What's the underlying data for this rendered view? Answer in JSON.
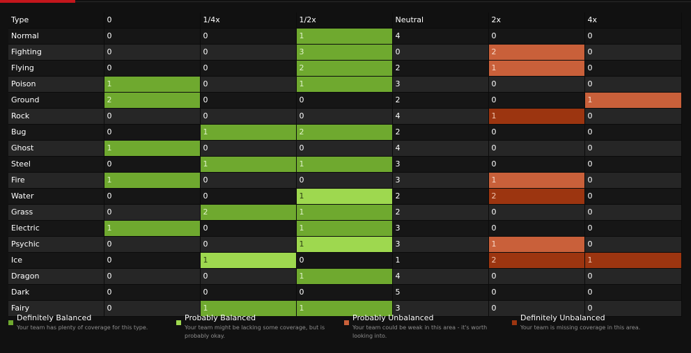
{
  "colors": {
    "background": "#111111",
    "accent": "#c4161c",
    "definitely_balanced": "#6fa92f",
    "probably_balanced": "#9ed84f",
    "probably_unbalanced": "#c9603a",
    "definitely_unbalanced": "#9c3510"
  },
  "table": {
    "headers": [
      "Type",
      "0",
      "1/4x",
      "1/2x",
      "Neutral",
      "2x",
      "4x"
    ],
    "rows": [
      {
        "type": "Normal",
        "values": [
          "0",
          "0",
          "1",
          "4",
          "0",
          "0"
        ],
        "status": [
          "",
          "",
          "db",
          "",
          "",
          ""
        ]
      },
      {
        "type": "Fighting",
        "values": [
          "0",
          "0",
          "3",
          "0",
          "2",
          "0"
        ],
        "status": [
          "",
          "",
          "db",
          "",
          "pu",
          ""
        ]
      },
      {
        "type": "Flying",
        "values": [
          "0",
          "0",
          "2",
          "2",
          "1",
          "0"
        ],
        "status": [
          "",
          "",
          "db",
          "",
          "pu",
          ""
        ]
      },
      {
        "type": "Poison",
        "values": [
          "1",
          "0",
          "1",
          "3",
          "0",
          "0"
        ],
        "status": [
          "db",
          "",
          "db",
          "",
          "",
          ""
        ]
      },
      {
        "type": "Ground",
        "values": [
          "2",
          "0",
          "0",
          "2",
          "0",
          "1"
        ],
        "status": [
          "db",
          "",
          "",
          "",
          "",
          "pu"
        ]
      },
      {
        "type": "Rock",
        "values": [
          "0",
          "0",
          "0",
          "4",
          "1",
          "0"
        ],
        "status": [
          "",
          "",
          "",
          "",
          "du",
          ""
        ]
      },
      {
        "type": "Bug",
        "values": [
          "0",
          "1",
          "2",
          "2",
          "0",
          "0"
        ],
        "status": [
          "",
          "db",
          "db",
          "",
          "",
          ""
        ]
      },
      {
        "type": "Ghost",
        "values": [
          "1",
          "0",
          "0",
          "4",
          "0",
          "0"
        ],
        "status": [
          "db",
          "",
          "",
          "",
          "",
          ""
        ]
      },
      {
        "type": "Steel",
        "values": [
          "0",
          "1",
          "1",
          "3",
          "0",
          "0"
        ],
        "status": [
          "",
          "db",
          "db",
          "",
          "",
          ""
        ]
      },
      {
        "type": "Fire",
        "values": [
          "1",
          "0",
          "0",
          "3",
          "1",
          "0"
        ],
        "status": [
          "db",
          "",
          "",
          "",
          "pu",
          ""
        ]
      },
      {
        "type": "Water",
        "values": [
          "0",
          "0",
          "1",
          "2",
          "2",
          "0"
        ],
        "status": [
          "",
          "",
          "pb",
          "",
          "du",
          ""
        ]
      },
      {
        "type": "Grass",
        "values": [
          "0",
          "2",
          "1",
          "2",
          "0",
          "0"
        ],
        "status": [
          "",
          "db",
          "db",
          "",
          "",
          ""
        ]
      },
      {
        "type": "Electric",
        "values": [
          "1",
          "0",
          "1",
          "3",
          "0",
          "0"
        ],
        "status": [
          "db",
          "",
          "db",
          "",
          "",
          ""
        ]
      },
      {
        "type": "Psychic",
        "values": [
          "0",
          "0",
          "1",
          "3",
          "1",
          "0"
        ],
        "status": [
          "",
          "",
          "pb",
          "",
          "pu",
          ""
        ]
      },
      {
        "type": "Ice",
        "values": [
          "0",
          "1",
          "0",
          "1",
          "2",
          "1"
        ],
        "status": [
          "",
          "pb",
          "",
          "",
          "du",
          "du"
        ]
      },
      {
        "type": "Dragon",
        "values": [
          "0",
          "0",
          "1",
          "4",
          "0",
          "0"
        ],
        "status": [
          "",
          "",
          "db",
          "",
          "",
          ""
        ]
      },
      {
        "type": "Dark",
        "values": [
          "0",
          "0",
          "0",
          "5",
          "0",
          "0"
        ],
        "status": [
          "",
          "",
          "",
          "",
          "",
          ""
        ]
      },
      {
        "type": "Fairy",
        "values": [
          "0",
          "1",
          "1",
          "3",
          "0",
          "0"
        ],
        "status": [
          "",
          "db",
          "db",
          "",
          "",
          ""
        ]
      }
    ]
  },
  "legend": [
    {
      "key": "db",
      "title": "Definitely Balanced",
      "description": "Your team has plenty of coverage for this type.",
      "color": "#6fa92f"
    },
    {
      "key": "pb",
      "title": "Probably Balanced",
      "description": "Your team might be lacking some coverage, but is probably okay.",
      "color": "#9ed84f"
    },
    {
      "key": "pu",
      "title": "Probably Unbalanced",
      "description": "Your team could be weak in this area - it's worth looking into.",
      "color": "#c9603a"
    },
    {
      "key": "du",
      "title": "Definitely Unbalanced",
      "description": "Your team is missing coverage in this area.",
      "color": "#9c3510"
    }
  ]
}
